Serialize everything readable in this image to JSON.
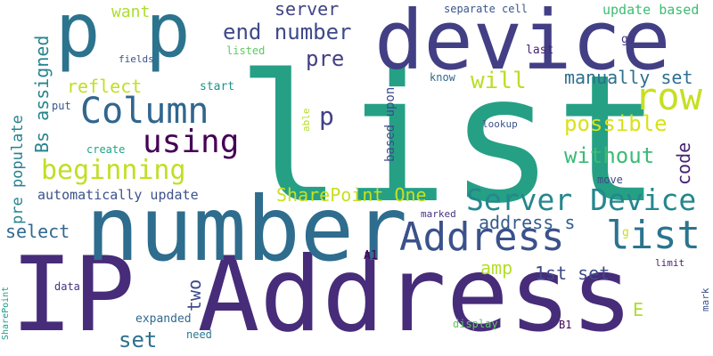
{
  "words": [
    {
      "text": "list",
      "color": "#25a085"
    },
    {
      "text": "IP Address",
      "color": "#472c7a"
    },
    {
      "text": "number",
      "color": "#2e6d8e"
    },
    {
      "text": "device",
      "color": "#423f85"
    },
    {
      "text": "p p",
      "color": "#2c738e"
    },
    {
      "text": "Address",
      "color": "#3b518b"
    },
    {
      "text": "list",
      "color": "#2b748e"
    },
    {
      "text": "row",
      "color": "#c6e021"
    },
    {
      "text": "Column",
      "color": "#31668e"
    },
    {
      "text": "Server Device",
      "color": "#24878e"
    },
    {
      "text": "using",
      "color": "#440154"
    },
    {
      "text": "beginning",
      "color": "#c0df25"
    },
    {
      "text": "end number",
      "color": "#3e4a89"
    },
    {
      "text": "p",
      "color": "#424086"
    },
    {
      "text": "pre",
      "color": "#424086"
    },
    {
      "text": "possible",
      "color": "#d8e219"
    },
    {
      "text": "without",
      "color": "#3bbb75"
    },
    {
      "text": "SharePoint One",
      "color": "#c8e020"
    },
    {
      "text": "reflect",
      "color": "#c2df23"
    },
    {
      "text": "will",
      "color": "#bade28"
    },
    {
      "text": "manually set",
      "color": "#2d708e"
    },
    {
      "text": "server",
      "color": "#414287"
    },
    {
      "text": "address s",
      "color": "#365c8d"
    },
    {
      "text": "amp",
      "color": "#b5de2b"
    },
    {
      "text": "1st set",
      "color": "#3e4a89"
    },
    {
      "text": "set",
      "color": "#2d718e"
    },
    {
      "text": "select",
      "color": "#31688e"
    },
    {
      "text": "automatically update",
      "color": "#3b528b"
    },
    {
      "text": "want",
      "color": "#addc30"
    },
    {
      "text": "update based",
      "color": "#3dbc74"
    },
    {
      "text": "separate cell",
      "color": "#39568c"
    },
    {
      "text": "expanded",
      "color": "#31688e"
    },
    {
      "text": "E",
      "color": "#addc30"
    },
    {
      "text": "two",
      "color": "#3e4a89"
    },
    {
      "text": "code",
      "color": "#482374"
    },
    {
      "text": "Bs assigned",
      "color": "#25848e"
    },
    {
      "text": "pre populate",
      "color": "#26828e"
    },
    {
      "text": "based upon",
      "color": "#3f4889"
    },
    {
      "text": "start",
      "color": "#21918c"
    },
    {
      "text": "put",
      "color": "#39568c"
    },
    {
      "text": "fields",
      "color": "#3b528b"
    },
    {
      "text": "listed",
      "color": "#5ec962"
    },
    {
      "text": "know",
      "color": "#31688e"
    },
    {
      "text": "last",
      "color": "#482475"
    },
    {
      "text": "go",
      "color": "#453882"
    },
    {
      "text": "create",
      "color": "#20a386"
    },
    {
      "text": "lookup",
      "color": "#3b528b"
    },
    {
      "text": "able",
      "color": "#b5de2b"
    },
    {
      "text": "move",
      "color": "#3f4889"
    },
    {
      "text": "marked",
      "color": "#46337f"
    },
    {
      "text": "g",
      "color": "#c2df23"
    },
    {
      "text": "A1",
      "color": "#440154"
    },
    {
      "text": "limit",
      "color": "#481f70"
    },
    {
      "text": "mark",
      "color": "#3b528b"
    },
    {
      "text": "data",
      "color": "#46327e"
    },
    {
      "text": "need",
      "color": "#2a788e"
    },
    {
      "text": "display",
      "color": "#5ec962"
    },
    {
      "text": "B1",
      "color": "#440154"
    },
    {
      "text": "SharePoint",
      "color": "#1f9e89"
    }
  ]
}
